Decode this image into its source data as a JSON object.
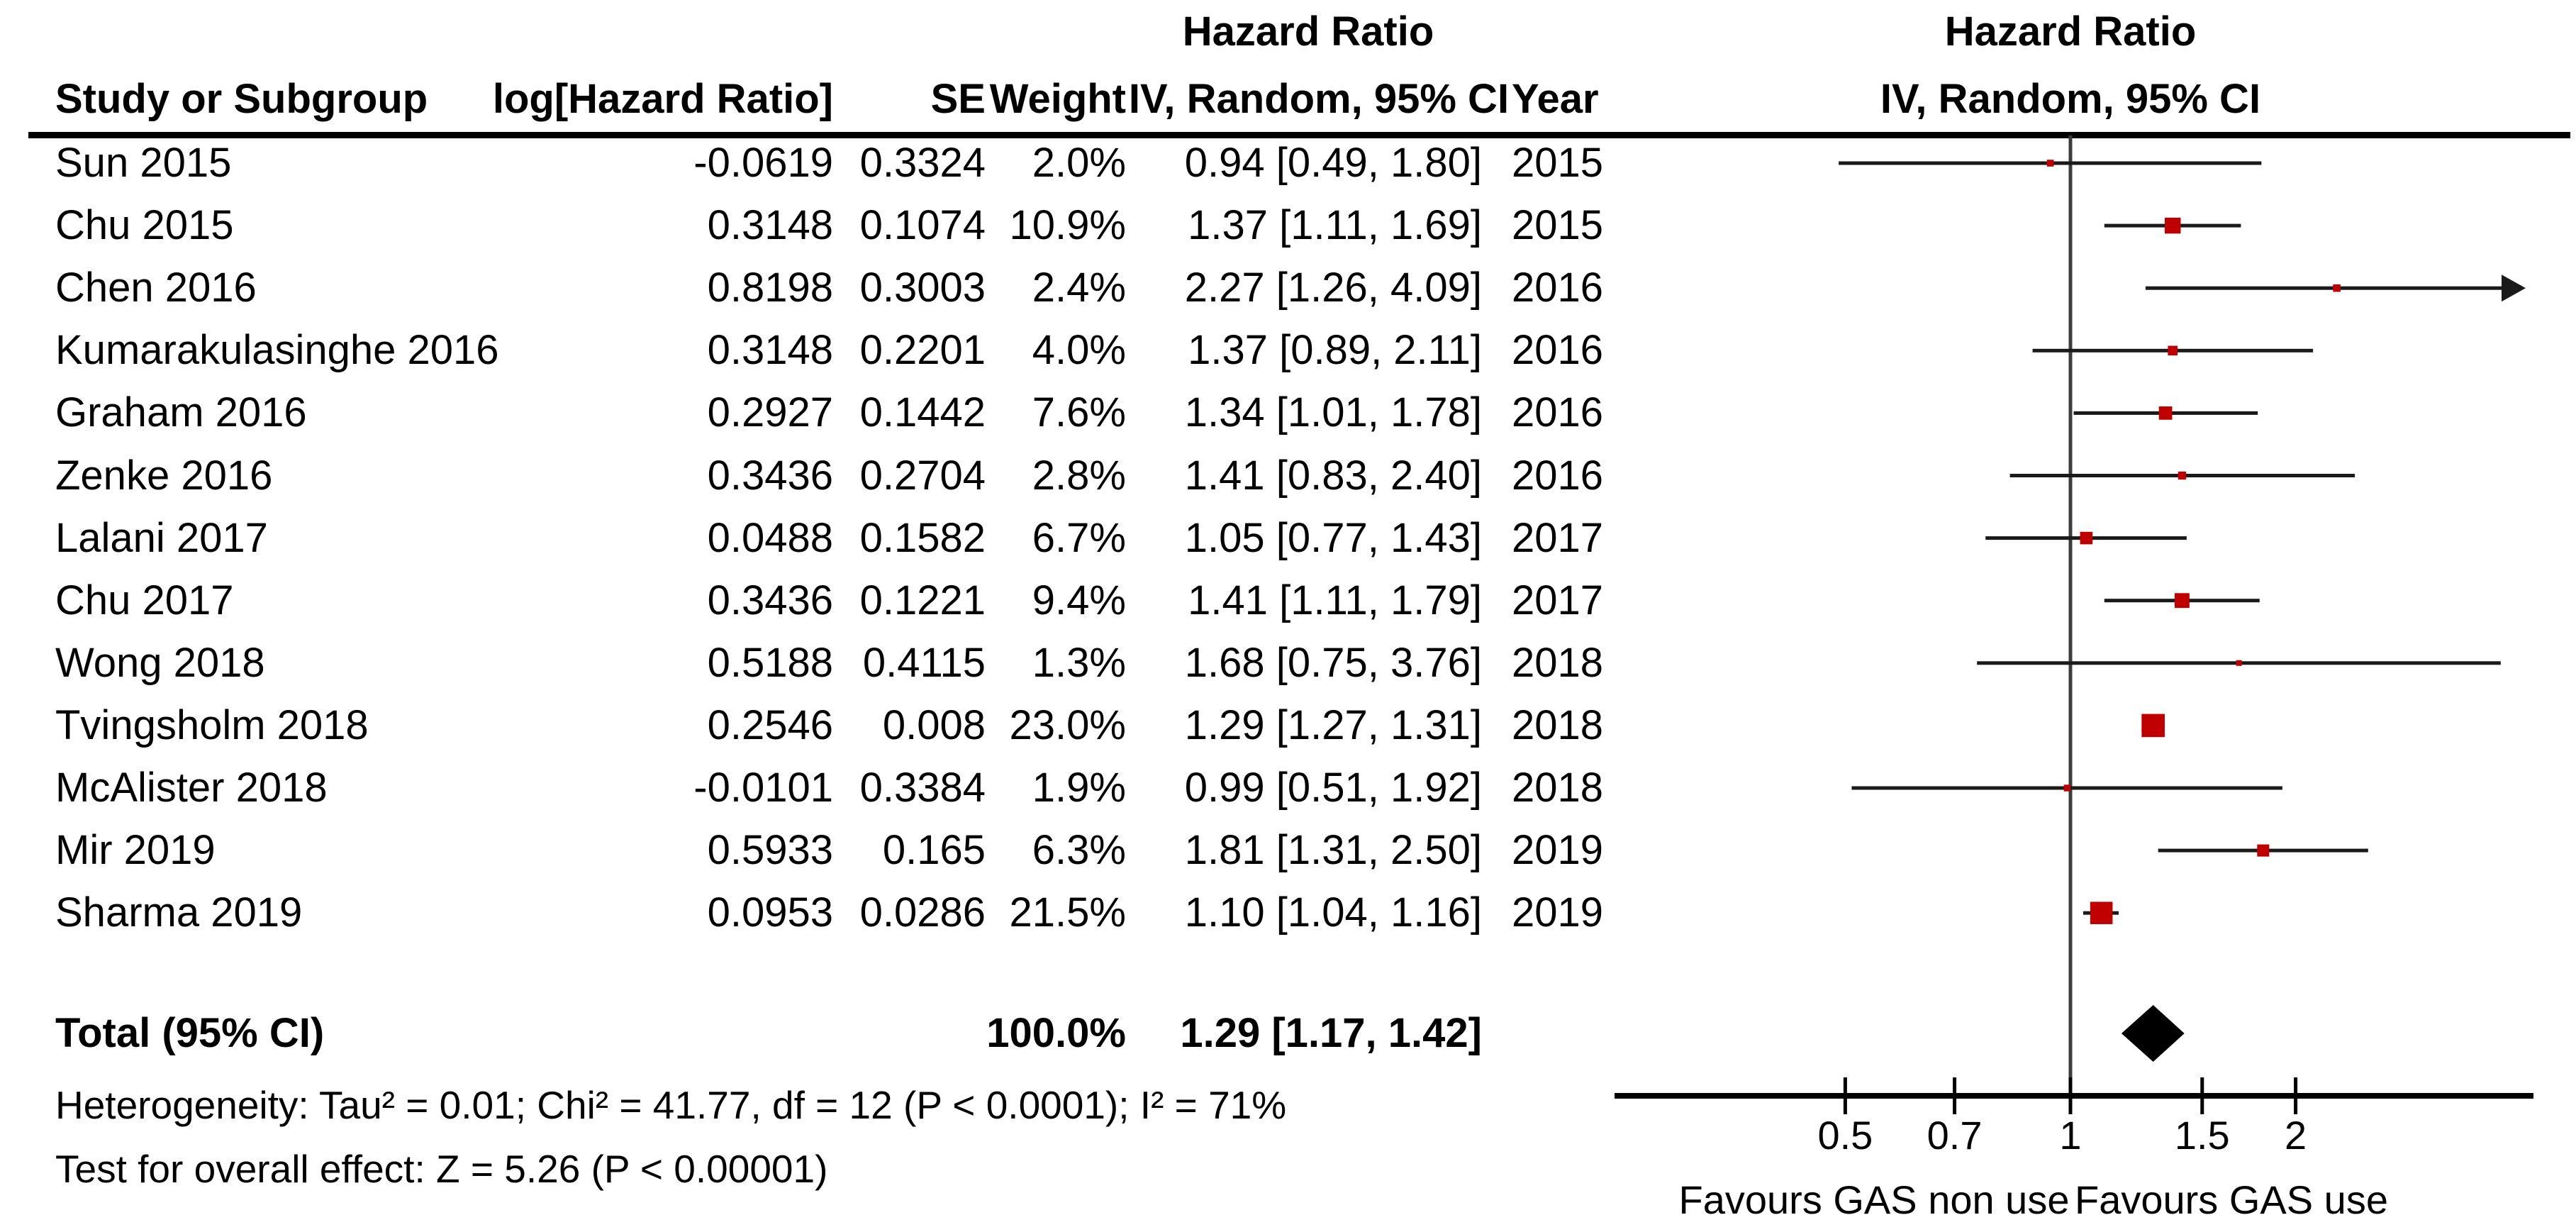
{
  "headers": {
    "effect_measure_left": "Hazard Ratio",
    "effect_measure_right": "Hazard Ratio",
    "method_right": "IV, Random, 95% CI"
  },
  "columns": {
    "study": "Study or Subgroup",
    "log_hr": "log[Hazard Ratio]",
    "se": "SE",
    "weight": "Weight",
    "ci": "IV, Random, 95% CI",
    "year": "Year"
  },
  "studies": [
    {
      "name": "Sun 2015",
      "log_hr": "-0.0619",
      "se": "0.3324",
      "weight": "2.0%",
      "ci_text": "0.94 [0.49, 1.80]",
      "year": "2015",
      "hr": 0.94,
      "lo": 0.49,
      "hi": 1.8,
      "weight_pct": 2.0
    },
    {
      "name": "Chu 2015",
      "log_hr": "0.3148",
      "se": "0.1074",
      "weight": "10.9%",
      "ci_text": "1.37 [1.11, 1.69]",
      "year": "2015",
      "hr": 1.37,
      "lo": 1.11,
      "hi": 1.69,
      "weight_pct": 10.9
    },
    {
      "name": "Chen 2016",
      "log_hr": "0.8198",
      "se": "0.3003",
      "weight": "2.4%",
      "ci_text": "2.27 [1.26, 4.09]",
      "year": "2016",
      "hr": 2.27,
      "lo": 1.26,
      "hi": 4.09,
      "weight_pct": 2.4
    },
    {
      "name": "Kumarakulasinghe 2016",
      "log_hr": "0.3148",
      "se": "0.2201",
      "weight": "4.0%",
      "ci_text": "1.37 [0.89, 2.11]",
      "year": "2016",
      "hr": 1.37,
      "lo": 0.89,
      "hi": 2.11,
      "weight_pct": 4.0
    },
    {
      "name": "Graham 2016",
      "log_hr": "0.2927",
      "se": "0.1442",
      "weight": "7.6%",
      "ci_text": "1.34 [1.01, 1.78]",
      "year": "2016",
      "hr": 1.34,
      "lo": 1.01,
      "hi": 1.78,
      "weight_pct": 7.6
    },
    {
      "name": "Zenke 2016",
      "log_hr": "0.3436",
      "se": "0.2704",
      "weight": "2.8%",
      "ci_text": "1.41 [0.83, 2.40]",
      "year": "2016",
      "hr": 1.41,
      "lo": 0.83,
      "hi": 2.4,
      "weight_pct": 2.8
    },
    {
      "name": "Lalani 2017",
      "log_hr": "0.0488",
      "se": "0.1582",
      "weight": "6.7%",
      "ci_text": "1.05 [0.77, 1.43]",
      "year": "2017",
      "hr": 1.05,
      "lo": 0.77,
      "hi": 1.43,
      "weight_pct": 6.7
    },
    {
      "name": "Chu 2017",
      "log_hr": "0.3436",
      "se": "0.1221",
      "weight": "9.4%",
      "ci_text": "1.41 [1.11, 1.79]",
      "year": "2017",
      "hr": 1.41,
      "lo": 1.11,
      "hi": 1.79,
      "weight_pct": 9.4
    },
    {
      "name": "Wong 2018",
      "log_hr": "0.5188",
      "se": "0.4115",
      "weight": "1.3%",
      "ci_text": "1.68 [0.75, 3.76]",
      "year": "2018",
      "hr": 1.68,
      "lo": 0.75,
      "hi": 3.76,
      "weight_pct": 1.3
    },
    {
      "name": "Tvingsholm 2018",
      "log_hr": "0.2546",
      "se": "0.008",
      "weight": "23.0%",
      "ci_text": "1.29 [1.27, 1.31]",
      "year": "2018",
      "hr": 1.29,
      "lo": 1.27,
      "hi": 1.31,
      "weight_pct": 23.0
    },
    {
      "name": "McAlister 2018",
      "log_hr": "-0.0101",
      "se": "0.3384",
      "weight": "1.9%",
      "ci_text": "0.99 [0.51, 1.92]",
      "year": "2018",
      "hr": 0.99,
      "lo": 0.51,
      "hi": 1.92,
      "weight_pct": 1.9
    },
    {
      "name": "Mir 2019",
      "log_hr": "0.5933",
      "se": "0.165",
      "weight": "6.3%",
      "ci_text": "1.81 [1.31, 2.50]",
      "year": "2019",
      "hr": 1.81,
      "lo": 1.31,
      "hi": 2.5,
      "weight_pct": 6.3
    },
    {
      "name": "Sharma 2019",
      "log_hr": "0.0953",
      "se": "0.0286",
      "weight": "21.5%",
      "ci_text": "1.10 [1.04, 1.16]",
      "year": "2019",
      "hr": 1.1,
      "lo": 1.04,
      "hi": 1.16,
      "weight_pct": 21.5
    }
  ],
  "total": {
    "label": "Total (95% CI)",
    "weight": "100.0%",
    "ci_text": "1.29 [1.17, 1.42]",
    "hr": 1.29,
    "lo": 1.17,
    "hi": 1.42
  },
  "footer": {
    "heterogeneity": "Heterogeneity: Tau² = 0.01; Chi² = 41.77, df = 12 (P < 0.0001); I² = 71%",
    "overall_effect": "Test for overall effect: Z = 5.26 (P < 0.00001)"
  },
  "axis": {
    "ticks": [
      0.5,
      0.7,
      1,
      1.5,
      2
    ],
    "tick_labels": [
      "0.5",
      "0.7",
      "1",
      "1.5",
      "2"
    ],
    "min": 0.25,
    "max": 4.0,
    "scale": "log",
    "favours_left": "Favours GAS non use",
    "favours_right": "Favours GAS use"
  },
  "colors": {
    "marker": "#c00000",
    "ci_line": "#1a1a1a",
    "diamond": "#000000",
    "axis": "#000000",
    "null_line": "#3c3c3c"
  },
  "chart_data": {
    "type": "scatter",
    "subtype": "forest-plot",
    "title": "Hazard Ratio — IV, Random, 95% CI",
    "x_scale": "log",
    "x_ticks": [
      0.5,
      0.7,
      1,
      1.5,
      2
    ],
    "x_range": [
      0.25,
      4.0
    ],
    "categories": [
      "Sun 2015",
      "Chu 2015",
      "Chen 2016",
      "Kumarakulasinghe 2016",
      "Graham 2016",
      "Zenke 2016",
      "Lalani 2017",
      "Chu 2017",
      "Wong 2018",
      "Tvingsholm 2018",
      "McAlister 2018",
      "Mir 2019",
      "Sharma 2019"
    ],
    "hr": [
      0.94,
      1.37,
      2.27,
      1.37,
      1.34,
      1.41,
      1.05,
      1.41,
      1.68,
      1.29,
      0.99,
      1.81,
      1.1
    ],
    "ci_low": [
      0.49,
      1.11,
      1.26,
      0.89,
      1.01,
      0.83,
      0.77,
      1.11,
      0.75,
      1.27,
      0.51,
      1.31,
      1.04
    ],
    "ci_high": [
      1.8,
      1.69,
      4.09,
      2.11,
      1.78,
      2.4,
      1.43,
      1.79,
      3.76,
      1.31,
      1.92,
      2.5,
      1.16
    ],
    "weights_pct": [
      2.0,
      10.9,
      2.4,
      4.0,
      7.6,
      2.8,
      6.7,
      9.4,
      1.3,
      23.0,
      1.9,
      6.3,
      21.5
    ],
    "log_hr": [
      -0.0619,
      0.3148,
      0.8198,
      0.3148,
      0.2927,
      0.3436,
      0.0488,
      0.3436,
      0.5188,
      0.2546,
      -0.0101,
      0.5933,
      0.0953
    ],
    "se": [
      0.3324,
      0.1074,
      0.3003,
      0.2201,
      0.1442,
      0.2704,
      0.1582,
      0.1221,
      0.4115,
      0.008,
      0.3384,
      0.165,
      0.0286
    ],
    "years": [
      2015,
      2015,
      2016,
      2016,
      2016,
      2016,
      2017,
      2017,
      2018,
      2018,
      2018,
      2019,
      2019
    ],
    "total": {
      "hr": 1.29,
      "ci": [
        1.17,
        1.42
      ],
      "weight_pct": 100.0
    },
    "heterogeneity": {
      "tau2": 0.01,
      "chi2": 41.77,
      "df": 12,
      "p": "<0.0001",
      "i2_pct": 71
    },
    "overall_effect": {
      "z": 5.26,
      "p": "<0.00001"
    },
    "xlabel_left": "Favours GAS non use",
    "xlabel_right": "Favours GAS use",
    "legend_position": "none",
    "grid": false
  }
}
